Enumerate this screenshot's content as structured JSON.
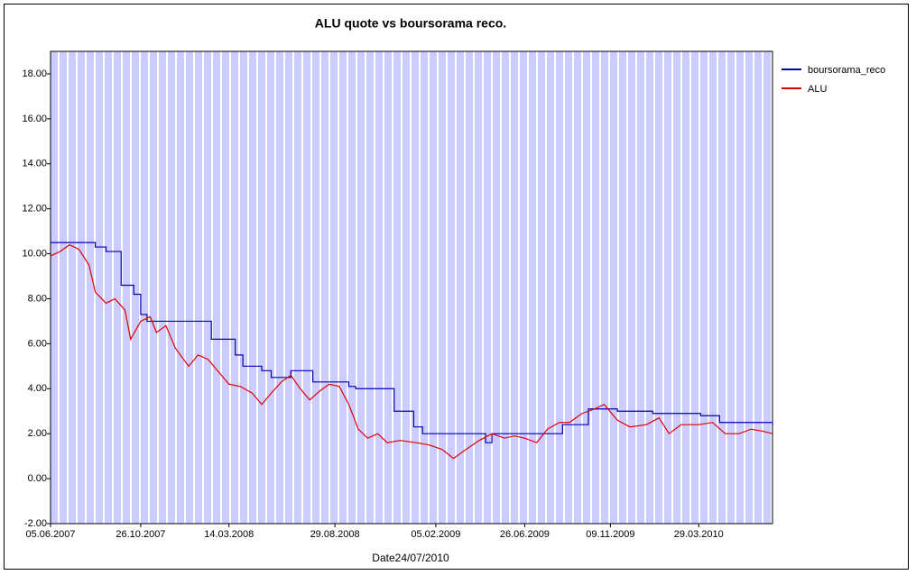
{
  "chart_data": {
    "type": "line",
    "title": "ALU quote vs boursorama reco.",
    "x_label": "Date24/07/2010",
    "xlim": [
      "2007-06-05",
      "2010-07-24"
    ],
    "xticks": [
      {
        "value": "2007-06-05",
        "label": "05.06.2007"
      },
      {
        "value": "2007-10-26",
        "label": "26.10.2007"
      },
      {
        "value": "2008-03-14",
        "label": "14.03.2008"
      },
      {
        "value": "2008-08-29",
        "label": "29.08.2008"
      },
      {
        "value": "2009-02-05",
        "label": "05.02.2009"
      },
      {
        "value": "2009-06-26",
        "label": "26.06.2009"
      },
      {
        "value": "2009-11-09",
        "label": "09.11.2009"
      },
      {
        "value": "2010-03-29",
        "label": "29.03.2010"
      }
    ],
    "ylim": [
      -2,
      19
    ],
    "yticks": [
      {
        "value": -2,
        "label": "-2.00"
      },
      {
        "value": 0,
        "label": "0.00"
      },
      {
        "value": 2,
        "label": "2.00"
      },
      {
        "value": 4,
        "label": "4.00"
      },
      {
        "value": 6,
        "label": "6.00"
      },
      {
        "value": 8,
        "label": "8.00"
      },
      {
        "value": 10,
        "label": "10.00"
      },
      {
        "value": 12,
        "label": "12.00"
      },
      {
        "value": 14,
        "label": "14.00"
      },
      {
        "value": 16,
        "label": "16.00"
      },
      {
        "value": 18,
        "label": "18.00"
      }
    ],
    "legend": "right",
    "series": [
      {
        "name": "boursorama_reco",
        "color": "#0000b4",
        "drawstyle": "steps-post",
        "x": [
          "2007-06-05",
          "2007-08-15",
          "2007-09-01",
          "2007-09-25",
          "2007-10-15",
          "2007-10-26",
          "2007-11-05",
          "2008-02-15",
          "2008-03-24",
          "2008-04-05",
          "2008-05-05",
          "2008-05-20",
          "2008-06-20",
          "2008-07-25",
          "2008-09-20",
          "2008-10-01",
          "2008-12-01",
          "2009-01-01",
          "2009-01-15",
          "2009-04-25",
          "2009-05-05",
          "2009-08-25",
          "2009-10-05",
          "2009-11-20",
          "2010-01-15",
          "2010-04-01",
          "2010-05-01",
          "2010-07-24"
        ],
        "values": [
          10.5,
          10.3,
          10.1,
          8.6,
          8.2,
          7.3,
          7.0,
          6.2,
          5.5,
          5.0,
          4.8,
          4.5,
          4.8,
          4.3,
          4.1,
          4.0,
          3.0,
          2.3,
          2.0,
          1.6,
          2.0,
          2.4,
          3.1,
          3.0,
          2.9,
          2.8,
          2.5,
          2.35
        ]
      },
      {
        "name": "ALU",
        "color": "#e00000",
        "x": [
          "2007-06-05",
          "2007-06-20",
          "2007-07-05",
          "2007-07-20",
          "2007-08-05",
          "2007-08-15",
          "2007-09-01",
          "2007-09-15",
          "2007-10-01",
          "2007-10-10",
          "2007-10-26",
          "2007-11-10",
          "2007-11-20",
          "2007-12-05",
          "2007-12-20",
          "2008-01-10",
          "2008-01-25",
          "2008-02-10",
          "2008-02-25",
          "2008-03-14",
          "2008-04-01",
          "2008-04-20",
          "2008-05-05",
          "2008-05-20",
          "2008-06-05",
          "2008-06-20",
          "2008-07-05",
          "2008-07-20",
          "2008-08-05",
          "2008-08-20",
          "2008-09-05",
          "2008-09-20",
          "2008-10-05",
          "2008-10-20",
          "2008-11-05",
          "2008-11-20",
          "2008-12-10",
          "2009-01-05",
          "2009-01-25",
          "2009-02-15",
          "2009-03-05",
          "2009-03-25",
          "2009-04-15",
          "2009-05-05",
          "2009-05-25",
          "2009-06-10",
          "2009-06-26",
          "2009-07-15",
          "2009-08-01",
          "2009-08-20",
          "2009-09-05",
          "2009-09-25",
          "2009-10-15",
          "2009-10-30",
          "2009-11-20",
          "2009-12-10",
          "2010-01-05",
          "2010-01-25",
          "2010-02-10",
          "2010-03-01",
          "2010-03-29",
          "2010-04-20",
          "2010-05-10",
          "2010-06-01",
          "2010-06-20",
          "2010-07-10",
          "2010-07-24"
        ],
        "values": [
          9.9,
          10.1,
          10.4,
          10.2,
          9.5,
          8.3,
          7.8,
          8.0,
          7.5,
          6.2,
          7.0,
          7.2,
          6.5,
          6.8,
          5.8,
          5.0,
          5.5,
          5.3,
          4.8,
          4.2,
          4.1,
          3.8,
          3.3,
          3.8,
          4.3,
          4.6,
          4.0,
          3.5,
          3.9,
          4.2,
          4.1,
          3.3,
          2.2,
          1.8,
          2.0,
          1.6,
          1.7,
          1.6,
          1.5,
          1.3,
          0.9,
          1.3,
          1.7,
          2.0,
          1.8,
          1.9,
          1.8,
          1.6,
          2.2,
          2.5,
          2.5,
          2.9,
          3.1,
          3.3,
          2.6,
          2.3,
          2.4,
          2.7,
          2.0,
          2.4,
          2.4,
          2.5,
          2.0,
          2.0,
          2.2,
          2.1,
          2.0
        ]
      }
    ]
  }
}
